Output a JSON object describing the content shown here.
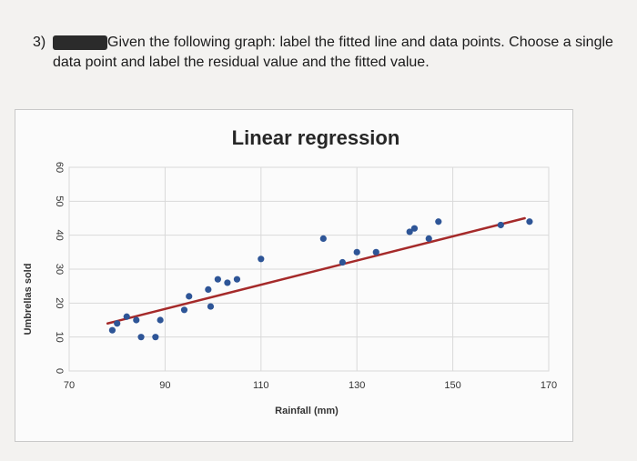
{
  "question": {
    "number": "3)",
    "line1": "Given the following graph: label the fitted line and data points. Choose a single",
    "line2": "data point and label the residual value and the fitted value."
  },
  "chart_data": {
    "type": "scatter",
    "title": "Linear regression",
    "xlabel": "Rainfall (mm)",
    "ylabel": "Umbrellas sold",
    "xlim": [
      70,
      170
    ],
    "ylim": [
      0,
      60
    ],
    "x_ticks": [
      70,
      90,
      110,
      130,
      150,
      170
    ],
    "y_ticks": [
      0,
      10,
      20,
      30,
      40,
      50,
      60
    ],
    "grid": true,
    "colors": {
      "points": "#2e5597",
      "fit_line": "#a52a2a",
      "grid": "#d9d9d9"
    },
    "series": [
      {
        "x": [
          79,
          80,
          82,
          84,
          85,
          88,
          89,
          94,
          95,
          99,
          99.5,
          101,
          103,
          105,
          110,
          123,
          127,
          130,
          134,
          141,
          142,
          145,
          147,
          160,
          166
        ],
        "y": [
          12,
          14,
          16,
          15,
          10,
          10,
          15,
          18,
          22,
          24,
          19,
          27,
          26,
          27,
          33,
          39,
          32,
          35,
          35,
          41,
          42,
          39,
          44,
          43,
          44
        ]
      }
    ],
    "fit_line": {
      "x": [
        78,
        165
      ],
      "y": [
        14,
        45
      ]
    }
  }
}
